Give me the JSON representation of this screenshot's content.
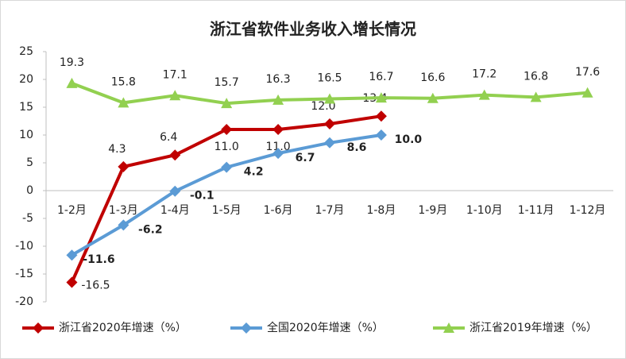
{
  "chart_data": {
    "type": "line",
    "title": "浙江省软件业务收入增长情况",
    "categories": [
      "1-2月",
      "1-3月",
      "1-4月",
      "1-5月",
      "1-6月",
      "1-7月",
      "1-8月",
      "1-9月",
      "1-10月",
      "1-11月",
      "1-12月"
    ],
    "series": [
      {
        "name": "浙江省2020年增速（%）",
        "color": "#c00000",
        "marker": "diamond",
        "values": [
          -16.5,
          4.3,
          6.4,
          11.0,
          11.0,
          12.0,
          13.4,
          null,
          null,
          null,
          null
        ],
        "value_labels": [
          "-16.5",
          "4.3",
          "6.4",
          "11.0",
          "11.0",
          "12.0",
          "13.4",
          null,
          null,
          null,
          null
        ]
      },
      {
        "name": "全国2020年增速（%）",
        "color": "#5b9bd5",
        "marker": "diamond",
        "values": [
          -11.6,
          -6.2,
          -0.1,
          4.2,
          6.7,
          8.6,
          10.0,
          null,
          null,
          null,
          null
        ],
        "value_labels": [
          "-11.6",
          "-6.2",
          "-0.1",
          "4.2",
          "6.7",
          "8.6",
          "10.0",
          null,
          null,
          null,
          null
        ]
      },
      {
        "name": "浙江省2019年增速（%）",
        "color": "#92d050",
        "marker": "triangle",
        "values": [
          19.3,
          15.8,
          17.1,
          15.7,
          16.3,
          16.5,
          16.7,
          16.6,
          17.2,
          16.8,
          17.6
        ],
        "value_labels": [
          "19.3",
          "15.8",
          "17.1",
          "15.7",
          "16.3",
          "16.5",
          "16.7",
          "16.6",
          "17.2",
          "16.8",
          "17.6"
        ]
      }
    ],
    "ylim": [
      -20,
      25
    ],
    "yticks": [
      -20,
      -15,
      -10,
      -5,
      0,
      5,
      10,
      15,
      20,
      25
    ],
    "grid": false,
    "legend": "bottom"
  }
}
